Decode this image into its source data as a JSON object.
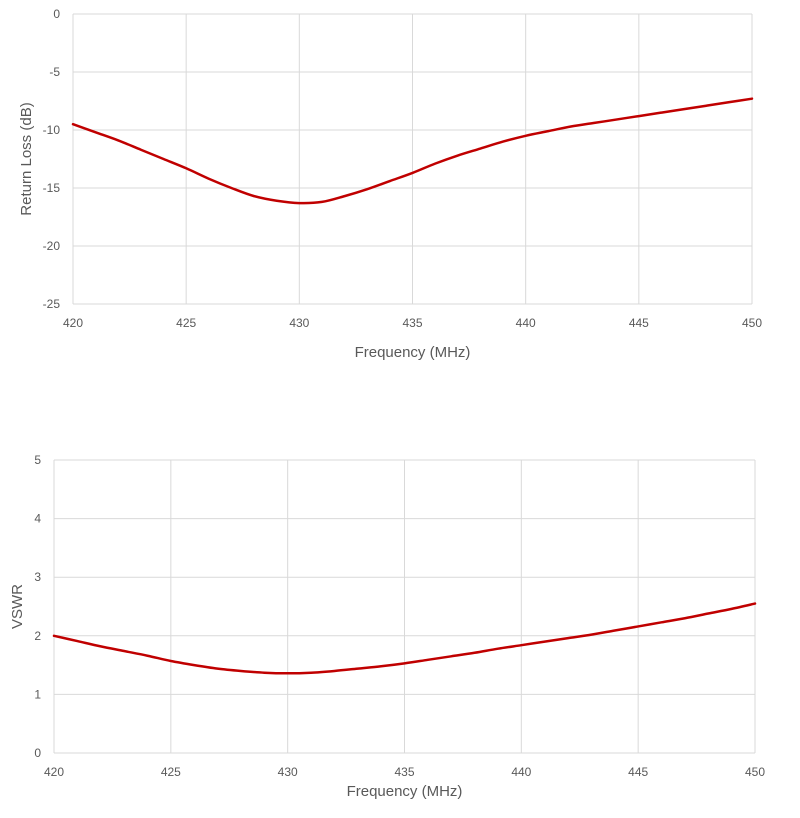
{
  "chart_data": [
    {
      "type": "line",
      "xlabel": "Frequency (MHz)",
      "ylabel": "Return Loss (dB)",
      "xlim": [
        420,
        450
      ],
      "ylim": [
        -25,
        0
      ],
      "x_ticks": [
        "420",
        "425",
        "430",
        "435",
        "440",
        "445",
        "450"
      ],
      "y_ticks": [
        "0",
        "-5",
        "-10",
        "-15",
        "-20",
        "-25"
      ],
      "grid": true,
      "legend": "none",
      "color": "#c00000",
      "series": [
        {
          "x": [
            420,
            421,
            422,
            423,
            424,
            425,
            426,
            427,
            428,
            429,
            430,
            431,
            432,
            433,
            434,
            435,
            436,
            437,
            438,
            439,
            440,
            441,
            442,
            443,
            444,
            445,
            446,
            447,
            448,
            449,
            450
          ],
          "values": [
            -9.5,
            -10.2,
            -10.9,
            -11.7,
            -12.5,
            -13.3,
            -14.2,
            -15.0,
            -15.7,
            -16.1,
            -16.3,
            -16.2,
            -15.7,
            -15.1,
            -14.4,
            -13.7,
            -12.9,
            -12.2,
            -11.6,
            -11.0,
            -10.5,
            -10.1,
            -9.7,
            -9.4,
            -9.1,
            -8.8,
            -8.5,
            -8.2,
            -7.9,
            -7.6,
            -7.3
          ]
        }
      ]
    },
    {
      "type": "line",
      "xlabel": "Frequency (MHz)",
      "ylabel": "VSWR",
      "xlim": [
        420,
        450
      ],
      "ylim": [
        0,
        5
      ],
      "x_ticks": [
        "420",
        "425",
        "430",
        "435",
        "440",
        "445",
        "450"
      ],
      "y_ticks": [
        "5",
        "4",
        "3",
        "2",
        "1",
        "0"
      ],
      "grid": true,
      "legend": "none",
      "color": "#c00000",
      "series": [
        {
          "x": [
            420,
            421,
            422,
            423,
            424,
            425,
            426,
            427,
            428,
            429,
            430,
            431,
            432,
            433,
            434,
            435,
            436,
            437,
            438,
            439,
            440,
            441,
            442,
            443,
            444,
            445,
            446,
            447,
            448,
            449,
            450
          ],
          "values": [
            2.0,
            1.91,
            1.82,
            1.74,
            1.66,
            1.57,
            1.5,
            1.44,
            1.4,
            1.37,
            1.36,
            1.37,
            1.4,
            1.44,
            1.48,
            1.53,
            1.59,
            1.65,
            1.71,
            1.78,
            1.84,
            1.9,
            1.96,
            2.02,
            2.09,
            2.16,
            2.23,
            2.3,
            2.38,
            2.46,
            2.55
          ]
        }
      ]
    }
  ]
}
